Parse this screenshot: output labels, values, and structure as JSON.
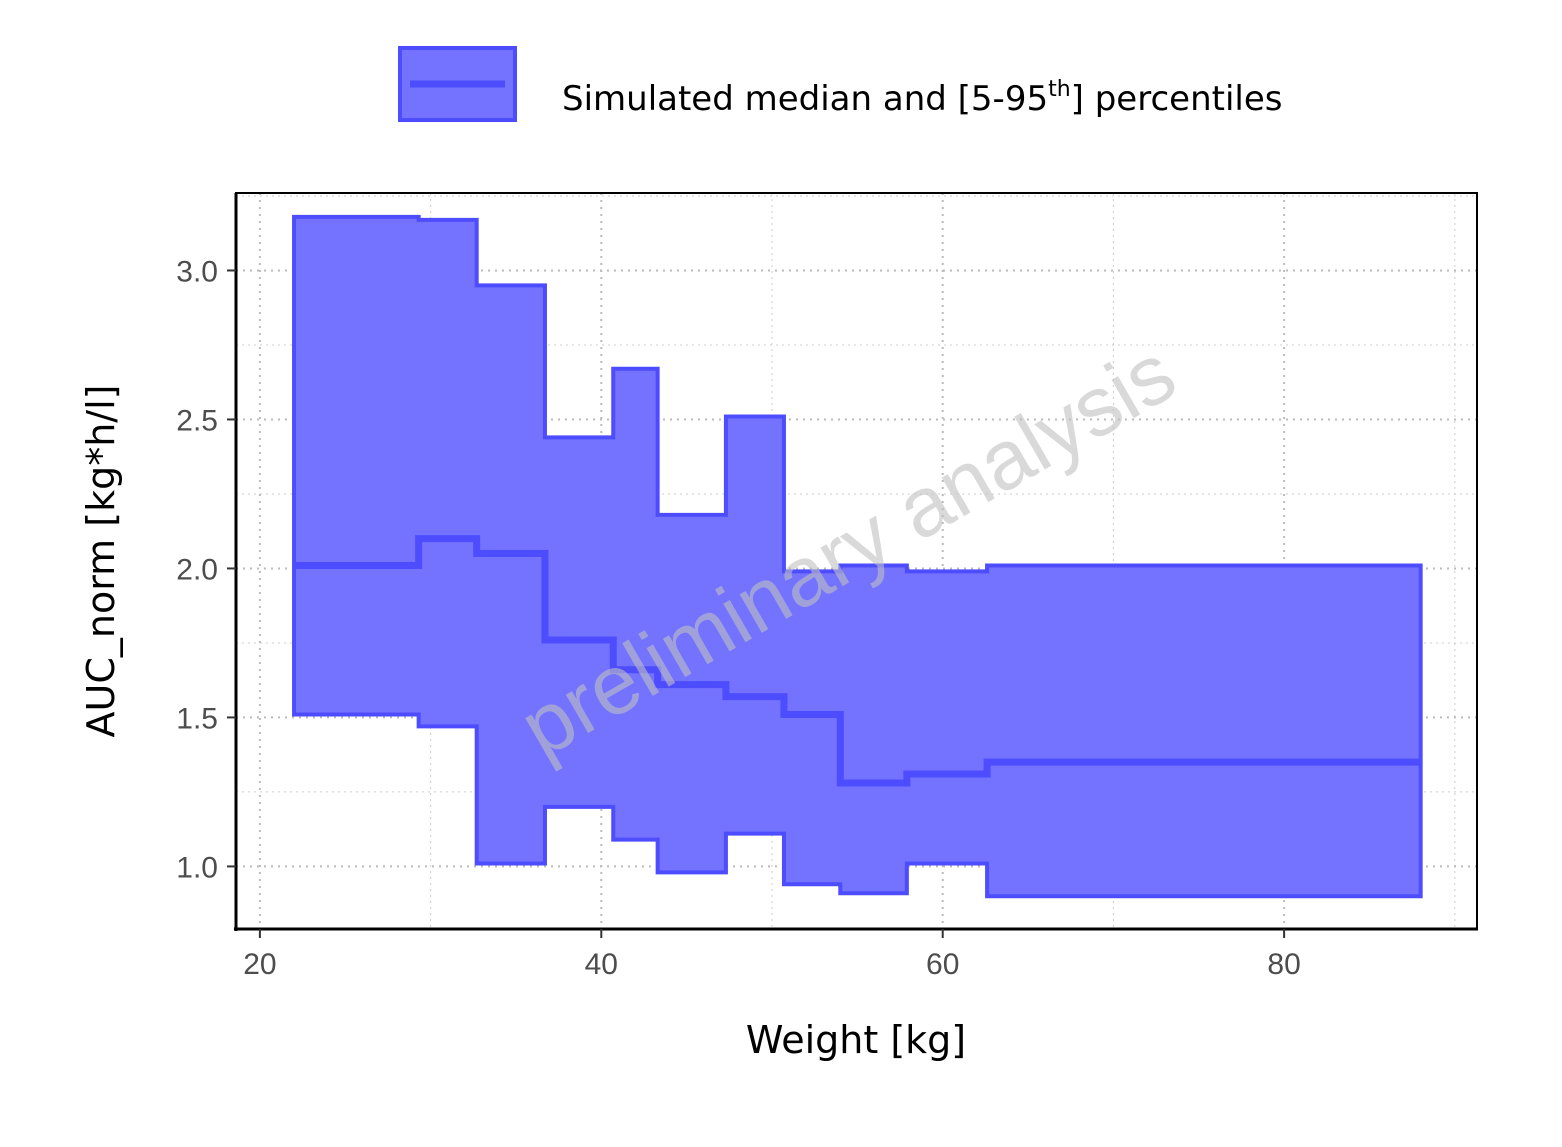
{
  "chart_data": {
    "type": "area",
    "xlabel": "Weight [kg]",
    "ylabel": "AUC_norm [kg*h/l]",
    "xlim": [
      18.6,
      91.3
    ],
    "ylim": [
      0.79,
      3.26
    ],
    "xticks": [
      20,
      40,
      60,
      80
    ],
    "xtick_labels": [
      "20",
      "40",
      "60",
      "80"
    ],
    "yticks": [
      1.0,
      1.5,
      2.0,
      2.5,
      3.0
    ],
    "ytick_labels": [
      "1.0",
      "1.5",
      "2.0",
      "2.5",
      "3.0"
    ],
    "grid": true,
    "legend": {
      "position": "top",
      "label_pre": "Simulated median and [5-95",
      "label_sup": "th",
      "label_post": "] percentiles"
    },
    "watermark": "preliminary analysis",
    "step": true,
    "bin_edges": [
      22.0,
      29.3,
      32.7,
      36.7,
      40.7,
      43.3,
      47.3,
      50.7,
      54.0,
      57.9,
      62.6,
      88.0
    ],
    "series": [
      {
        "name": "upper",
        "values": [
          3.18,
          3.17,
          2.95,
          2.44,
          2.67,
          2.18,
          2.51,
          1.99,
          2.01,
          1.99,
          2.01
        ]
      },
      {
        "name": "median",
        "values": [
          2.01,
          2.1,
          2.05,
          1.76,
          1.66,
          1.61,
          1.57,
          1.51,
          1.28,
          1.31,
          1.35
        ]
      },
      {
        "name": "lower",
        "values": [
          1.51,
          1.47,
          1.01,
          1.2,
          1.09,
          0.98,
          1.11,
          0.94,
          0.91,
          1.01,
          0.9
        ]
      }
    ],
    "colors": {
      "fill": "#7373ff",
      "line": "#4d4dff",
      "grid": "#cccccc",
      "axis": "#000000",
      "tick_text": "#4d4d4d"
    }
  }
}
